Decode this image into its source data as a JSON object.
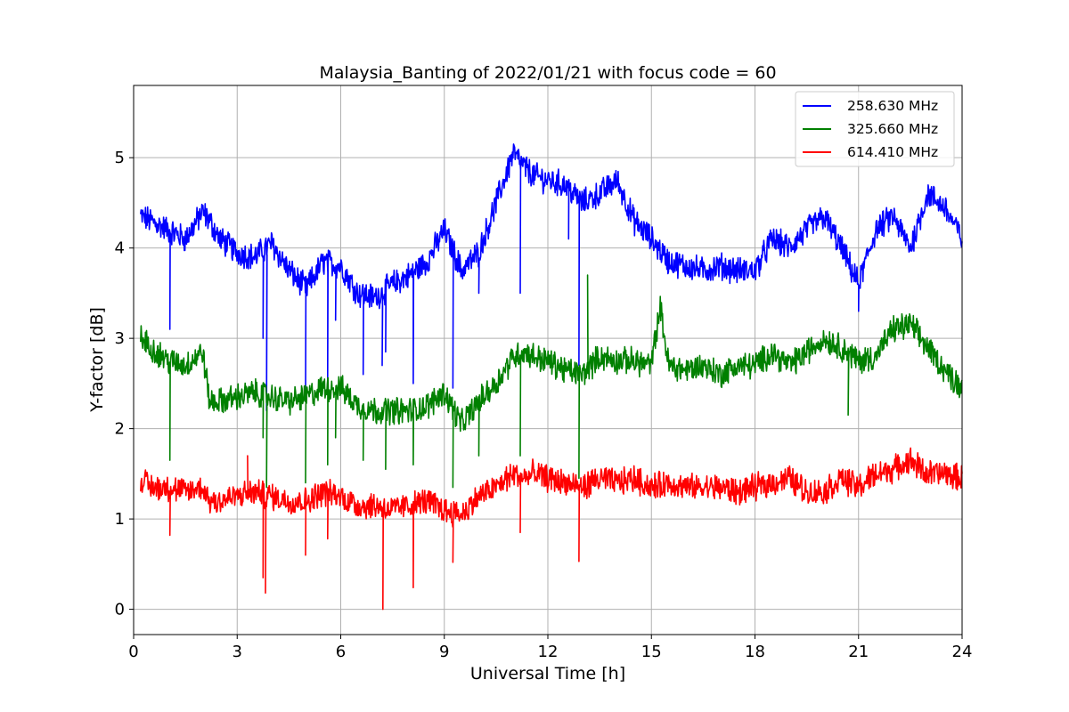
{
  "chart_data": {
    "type": "line",
    "title": "Malaysia_Banting of 2022/01/21 with focus code = 60",
    "xlabel": "Universal Time [h]",
    "ylabel": "Y-factor [dB]",
    "xlim": [
      0,
      24
    ],
    "ylim": [
      -0.28,
      5.8
    ],
    "xticks": [
      0,
      3,
      6,
      9,
      12,
      15,
      18,
      21,
      24
    ],
    "yticks": [
      0,
      1,
      2,
      3,
      4,
      5
    ],
    "grid": true,
    "legend_position": "top-right",
    "series": [
      {
        "name": "258.630 MHz",
        "color": "#0000ff",
        "x": [
          0.2,
          0.5,
          1.0,
          1.5,
          2.0,
          2.2,
          2.5,
          3.0,
          3.5,
          4.0,
          4.5,
          5.0,
          5.5,
          6.0,
          6.5,
          7.0,
          7.5,
          8.0,
          8.5,
          9.0,
          9.5,
          10.0,
          10.5,
          11.0,
          11.3,
          11.6,
          12.0,
          12.5,
          13.0,
          13.5,
          14.0,
          14.5,
          15.0,
          15.5,
          16.0,
          16.5,
          17.0,
          17.5,
          18.0,
          18.5,
          19.0,
          19.5,
          20.0,
          20.5,
          21.0,
          21.5,
          22.0,
          22.5,
          23.0,
          23.5,
          24.0
        ],
        "y": [
          4.35,
          4.3,
          4.2,
          4.1,
          4.4,
          4.3,
          4.1,
          3.95,
          3.9,
          4.05,
          3.75,
          3.55,
          3.85,
          3.8,
          3.5,
          3.45,
          3.6,
          3.7,
          3.85,
          4.2,
          3.75,
          3.95,
          4.5,
          5.05,
          4.9,
          4.8,
          4.75,
          4.7,
          4.5,
          4.6,
          4.75,
          4.3,
          4.1,
          3.85,
          3.8,
          3.75,
          3.8,
          3.75,
          3.75,
          4.1,
          4.0,
          4.2,
          4.35,
          4.0,
          3.6,
          4.2,
          4.35,
          4.0,
          4.6,
          4.45,
          4.1
        ],
        "spikes": [
          [
            1.05,
            3.1
          ],
          [
            3.75,
            3.0
          ],
          [
            3.85,
            2.2
          ],
          [
            4.98,
            2.3
          ],
          [
            5.62,
            2.55
          ],
          [
            5.85,
            3.2
          ],
          [
            6.65,
            2.6
          ],
          [
            7.2,
            2.7
          ],
          [
            7.3,
            2.85
          ],
          [
            8.1,
            2.5
          ],
          [
            9.25,
            2.45
          ],
          [
            10.0,
            3.5
          ],
          [
            11.2,
            3.5
          ],
          [
            12.9,
            2.7
          ],
          [
            12.6,
            4.1
          ],
          [
            21.0,
            3.3
          ]
        ]
      },
      {
        "name": "325.660 MHz",
        "color": "#008000",
        "x": [
          0.2,
          0.5,
          1.0,
          1.5,
          2.0,
          2.2,
          2.5,
          3.0,
          3.5,
          4.0,
          4.5,
          5.0,
          5.5,
          6.0,
          6.5,
          7.0,
          7.5,
          8.0,
          8.5,
          9.0,
          9.5,
          10.0,
          10.5,
          11.0,
          11.3,
          11.6,
          12.0,
          12.5,
          13.0,
          13.5,
          14.0,
          14.5,
          15.0,
          15.25,
          15.5,
          16.0,
          16.5,
          17.0,
          17.5,
          18.0,
          18.5,
          19.0,
          19.5,
          20.0,
          20.5,
          21.0,
          21.5,
          22.0,
          22.5,
          23.0,
          23.5,
          24.0
        ],
        "y": [
          3.0,
          2.9,
          2.75,
          2.7,
          2.85,
          2.3,
          2.3,
          2.35,
          2.4,
          2.35,
          2.3,
          2.35,
          2.45,
          2.45,
          2.25,
          2.2,
          2.2,
          2.2,
          2.25,
          2.4,
          2.05,
          2.3,
          2.5,
          2.8,
          2.85,
          2.8,
          2.75,
          2.65,
          2.6,
          2.8,
          2.75,
          2.75,
          2.7,
          3.35,
          2.7,
          2.65,
          2.7,
          2.6,
          2.7,
          2.7,
          2.85,
          2.7,
          2.85,
          3.0,
          2.9,
          2.75,
          2.8,
          3.1,
          3.15,
          2.9,
          2.65,
          2.45
        ],
        "spikes": [
          [
            1.05,
            1.65
          ],
          [
            3.75,
            1.9
          ],
          [
            3.85,
            1.35
          ],
          [
            4.98,
            1.4
          ],
          [
            5.62,
            1.6
          ],
          [
            5.85,
            1.9
          ],
          [
            6.65,
            1.65
          ],
          [
            7.3,
            1.55
          ],
          [
            8.1,
            1.6
          ],
          [
            9.25,
            1.35
          ],
          [
            10.0,
            1.7
          ],
          [
            11.2,
            1.7
          ],
          [
            12.9,
            1.45
          ],
          [
            13.15,
            3.7
          ],
          [
            20.7,
            2.15
          ]
        ]
      },
      {
        "name": "614.410 MHz",
        "color": "#ff0000",
        "x": [
          0.2,
          0.5,
          1.0,
          1.5,
          2.0,
          2.2,
          2.5,
          3.0,
          3.5,
          4.0,
          4.5,
          5.0,
          5.5,
          6.0,
          6.5,
          7.0,
          7.5,
          8.0,
          8.5,
          9.0,
          9.5,
          10.0,
          10.5,
          11.0,
          11.3,
          11.6,
          12.0,
          12.5,
          13.0,
          13.5,
          14.0,
          14.5,
          15.0,
          15.5,
          16.0,
          16.5,
          17.0,
          17.5,
          18.0,
          18.5,
          19.0,
          19.5,
          20.0,
          20.5,
          21.0,
          21.5,
          22.0,
          22.5,
          23.0,
          23.5,
          24.0
        ],
        "y": [
          1.45,
          1.35,
          1.35,
          1.3,
          1.35,
          1.2,
          1.2,
          1.25,
          1.3,
          1.25,
          1.2,
          1.2,
          1.3,
          1.25,
          1.15,
          1.15,
          1.1,
          1.15,
          1.2,
          1.1,
          1.05,
          1.25,
          1.35,
          1.5,
          1.45,
          1.5,
          1.45,
          1.4,
          1.35,
          1.45,
          1.4,
          1.45,
          1.35,
          1.4,
          1.35,
          1.35,
          1.35,
          1.3,
          1.35,
          1.4,
          1.45,
          1.3,
          1.3,
          1.45,
          1.35,
          1.5,
          1.55,
          1.65,
          1.5,
          1.5,
          1.45
        ],
        "spikes": [
          [
            1.05,
            0.82
          ],
          [
            3.75,
            0.35
          ],
          [
            3.82,
            0.18
          ],
          [
            4.98,
            0.6
          ],
          [
            5.62,
            0.78
          ],
          [
            7.22,
            0.0
          ],
          [
            8.1,
            0.24
          ],
          [
            9.25,
            0.52
          ],
          [
            11.2,
            0.85
          ],
          [
            12.9,
            0.53
          ],
          [
            3.3,
            1.7
          ]
        ]
      }
    ]
  }
}
